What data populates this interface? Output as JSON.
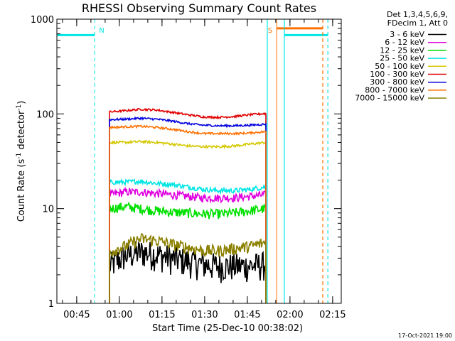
{
  "chart_data": {
    "type": "line",
    "title": "RHESSI Observing Summary Count Rates",
    "xlabel": "Start Time (25-Dec-10 00:38:02)",
    "ylabel": "Count Rate (s-1 detector-1)",
    "ylabel_parts": {
      "pre": "Count Rate (s",
      "sup1": "-1",
      "mid": " detector",
      "sup2": "-1",
      "post": ")"
    },
    "yscale": "log",
    "ylim": [
      1,
      1000
    ],
    "xlim_minutes": [
      0,
      100
    ],
    "x_ticks": [
      {
        "label": "00:45",
        "minutes": 6.97
      },
      {
        "label": "01:00",
        "minutes": 21.97
      },
      {
        "label": "01:15",
        "minutes": 36.97
      },
      {
        "label": "01:30",
        "minutes": 51.97
      },
      {
        "label": "01:45",
        "minutes": 66.97
      },
      {
        "label": "02:00",
        "minutes": 81.97
      },
      {
        "label": "02:15",
        "minutes": 96.97
      }
    ],
    "y_ticks": [
      {
        "label": "1",
        "value": 1
      },
      {
        "label": "10",
        "value": 10
      },
      {
        "label": "100",
        "value": 100
      },
      {
        "label": "1000",
        "value": 1000
      }
    ],
    "legend_header": [
      "Det 1,3,4,5,6,9,",
      "FDecim 1, Att 0"
    ],
    "series": [
      {
        "name": "3 - 6 keV",
        "color": "#000000",
        "start": 18.5,
        "end": 73.5,
        "values": [
          2.5,
          3.2,
          3.5,
          3.3,
          3.0,
          2.8,
          2.6,
          2.5,
          2.5,
          2.5,
          2.6
        ],
        "noise": 0.35
      },
      {
        "name": "6 - 12 keV",
        "color": "#e000e0",
        "start": 18.5,
        "end": 73.5,
        "values": [
          14,
          15,
          15,
          14.5,
          14,
          13.5,
          13,
          13,
          13,
          13.5,
          14
        ],
        "noise": 0.1
      },
      {
        "name": "12 - 25 keV",
        "color": "#00e000",
        "start": 18.5,
        "end": 73.5,
        "values": [
          10,
          10.5,
          10,
          9.5,
          9.2,
          9.0,
          8.8,
          8.8,
          9.0,
          9.5,
          10
        ],
        "noise": 0.12
      },
      {
        "name": "25 - 50 keV",
        "color": "#00e5e5",
        "start": 18.5,
        "end": 73.5,
        "values": [
          19,
          19,
          19.5,
          18.5,
          18,
          17,
          16,
          15.5,
          15.5,
          16,
          17
        ],
        "noise": 0.06
      },
      {
        "name": "50 - 100 keV",
        "color": "#d4c800",
        "start": 18.5,
        "end": 73.5,
        "values": [
          50,
          50,
          51,
          50,
          48,
          46,
          45,
          45,
          46,
          48,
          50
        ],
        "noise": 0.03
      },
      {
        "name": "100 - 300 keV",
        "color": "#e00000",
        "start": 18.5,
        "end": 73.5,
        "values": [
          105,
          108,
          112,
          110,
          104,
          98,
          93,
          92,
          94,
          98,
          101
        ],
        "noise": 0.025
      },
      {
        "name": "300 - 800 keV",
        "color": "#0000e0",
        "start": 18.5,
        "end": 73.5,
        "values": [
          87,
          88,
          90,
          88,
          84,
          79,
          76,
          75,
          75,
          76,
          78
        ],
        "noise": 0.025
      },
      {
        "name": "800 - 7000 keV",
        "color": "#ff7000",
        "start": 18.5,
        "end": 73.5,
        "values": [
          72,
          73,
          74,
          72,
          69,
          65,
          62,
          62,
          62,
          63,
          65
        ],
        "noise": 0.025
      },
      {
        "name": "7000 - 15000 keV",
        "color": "#8b8000",
        "start": 18.5,
        "end": 73.5,
        "values": [
          3.5,
          4.0,
          4.8,
          4.6,
          4.2,
          3.9,
          3.6,
          3.6,
          3.8,
          4.0,
          4.4
        ],
        "noise": 0.15
      }
    ],
    "markers": [
      {
        "label": "N",
        "color": "#00e5e5",
        "minutes": 13.3,
        "style": "dashed"
      },
      {
        "label": "S",
        "color": "#ff7000",
        "minutes": 77.3,
        "style": "solid"
      }
    ],
    "attenuator_levels": [
      {
        "color": "#00e5e5",
        "from": 0,
        "to": 13.3,
        "value": 680
      },
      {
        "color": "#ff7000",
        "from": 77.3,
        "to": 93.5,
        "value": 800
      },
      {
        "color": "#00e5e5",
        "from": 79.9,
        "to": 95.3,
        "value": 680
      }
    ],
    "vertical_lines": [
      {
        "color": "#00e5e5",
        "minutes": 74.0,
        "style": "solid"
      },
      {
        "color": "#00e5e5",
        "minutes": 80.0,
        "style": "solid"
      },
      {
        "color": "#ff7000",
        "minutes": 93.5,
        "style": "dashed"
      },
      {
        "color": "#00e5e5",
        "minutes": 95.3,
        "style": "dashed"
      }
    ],
    "timestamp": "17-Oct-2021 19:00"
  }
}
